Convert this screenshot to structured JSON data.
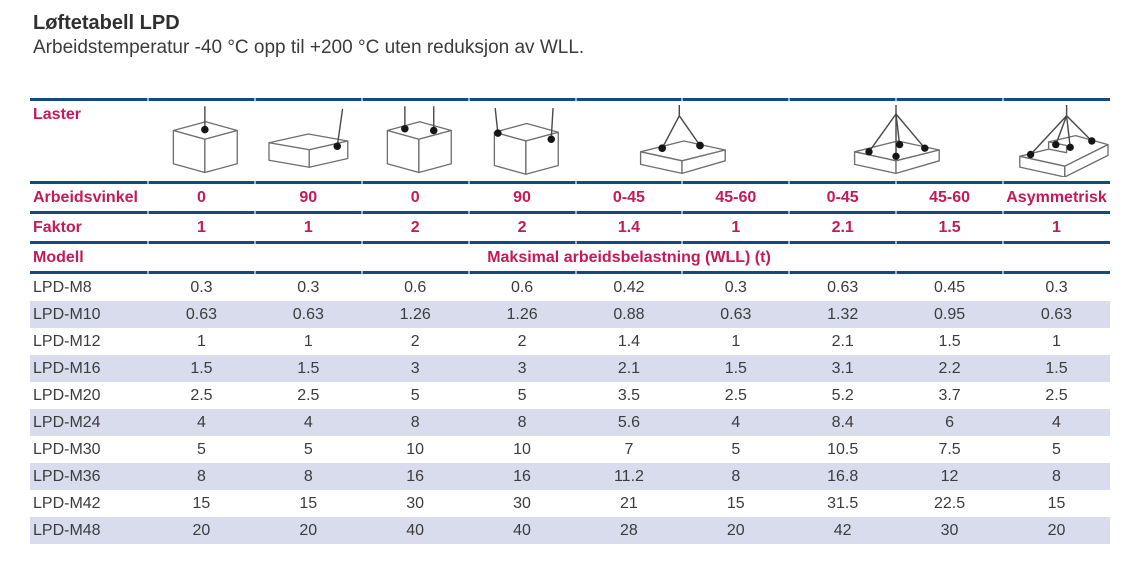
{
  "page": {
    "title": "Løftetabell LPD",
    "subtitle": "Arbeidstemperatur -40 °C opp til +200 °C uten reduksjon av WLL."
  },
  "colors": {
    "accent_red": "#C51A59",
    "rule_navy": "#174A7C",
    "row_alt_bg": "#D9DCEC",
    "body_text": "#3C3C3C"
  },
  "table": {
    "laster_label": "Laster",
    "icons": [
      "cube-single-top-point-vertical",
      "flat-box-single-side-point-90deg",
      "cube-two-top-points-vertical",
      "cube-two-side-points-90deg",
      "flat-box-two-leg-sling",
      "flat-box-four-leg-sling",
      "stepped-box-asymmetric-sling"
    ],
    "arbeidsvinkel_label": "Arbeidsvinkel",
    "arbeidsvinkel": [
      "0",
      "90",
      "0",
      "90",
      "0-45",
      "45-60",
      "0-45",
      "45-60",
      "Asymmetrisk"
    ],
    "faktor_label": "Faktor",
    "faktor": [
      "1",
      "1",
      "2",
      "2",
      "1.4",
      "1",
      "2.1",
      "1.5",
      "1"
    ],
    "modell_label": "Modell",
    "wll_header": "Maksimal arbeidsbelastning (WLL) (t)",
    "rows": [
      {
        "model": "LPD-M8",
        "values": [
          "0.3",
          "0.3",
          "0.6",
          "0.6",
          "0.42",
          "0.3",
          "0.63",
          "0.45",
          "0.3"
        ]
      },
      {
        "model": "LPD-M10",
        "values": [
          "0.63",
          "0.63",
          "1.26",
          "1.26",
          "0.88",
          "0.63",
          "1.32",
          "0.95",
          "0.63"
        ]
      },
      {
        "model": "LPD-M12",
        "values": [
          "1",
          "1",
          "2",
          "2",
          "1.4",
          "1",
          "2.1",
          "1.5",
          "1"
        ]
      },
      {
        "model": "LPD-M16",
        "values": [
          "1.5",
          "1.5",
          "3",
          "3",
          "2.1",
          "1.5",
          "3.1",
          "2.2",
          "1.5"
        ]
      },
      {
        "model": "LPD-M20",
        "values": [
          "2.5",
          "2.5",
          "5",
          "5",
          "3.5",
          "2.5",
          "5.2",
          "3.7",
          "2.5"
        ]
      },
      {
        "model": "LPD-M24",
        "values": [
          "4",
          "4",
          "8",
          "8",
          "5.6",
          "4",
          "8.4",
          "6",
          "4"
        ]
      },
      {
        "model": "LPD-M30",
        "values": [
          "5",
          "5",
          "10",
          "10",
          "7",
          "5",
          "10.5",
          "7.5",
          "5"
        ]
      },
      {
        "model": "LPD-M36",
        "values": [
          "8",
          "8",
          "16",
          "16",
          "11.2",
          "8",
          "16.8",
          "12",
          "8"
        ]
      },
      {
        "model": "LPD-M42",
        "values": [
          "15",
          "15",
          "30",
          "30",
          "21",
          "15",
          "31.5",
          "22.5",
          "15"
        ]
      },
      {
        "model": "LPD-M48",
        "values": [
          "20",
          "20",
          "40",
          "40",
          "28",
          "20",
          "42",
          "30",
          "20"
        ]
      }
    ]
  }
}
